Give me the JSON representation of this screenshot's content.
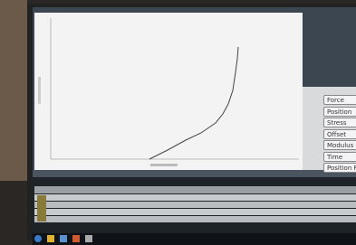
{
  "side_panel": {
    "buttons": [
      "Force",
      "Position",
      "Stress",
      "Offset",
      "Modulus",
      "Time",
      "Position Rel"
    ]
  }
}
